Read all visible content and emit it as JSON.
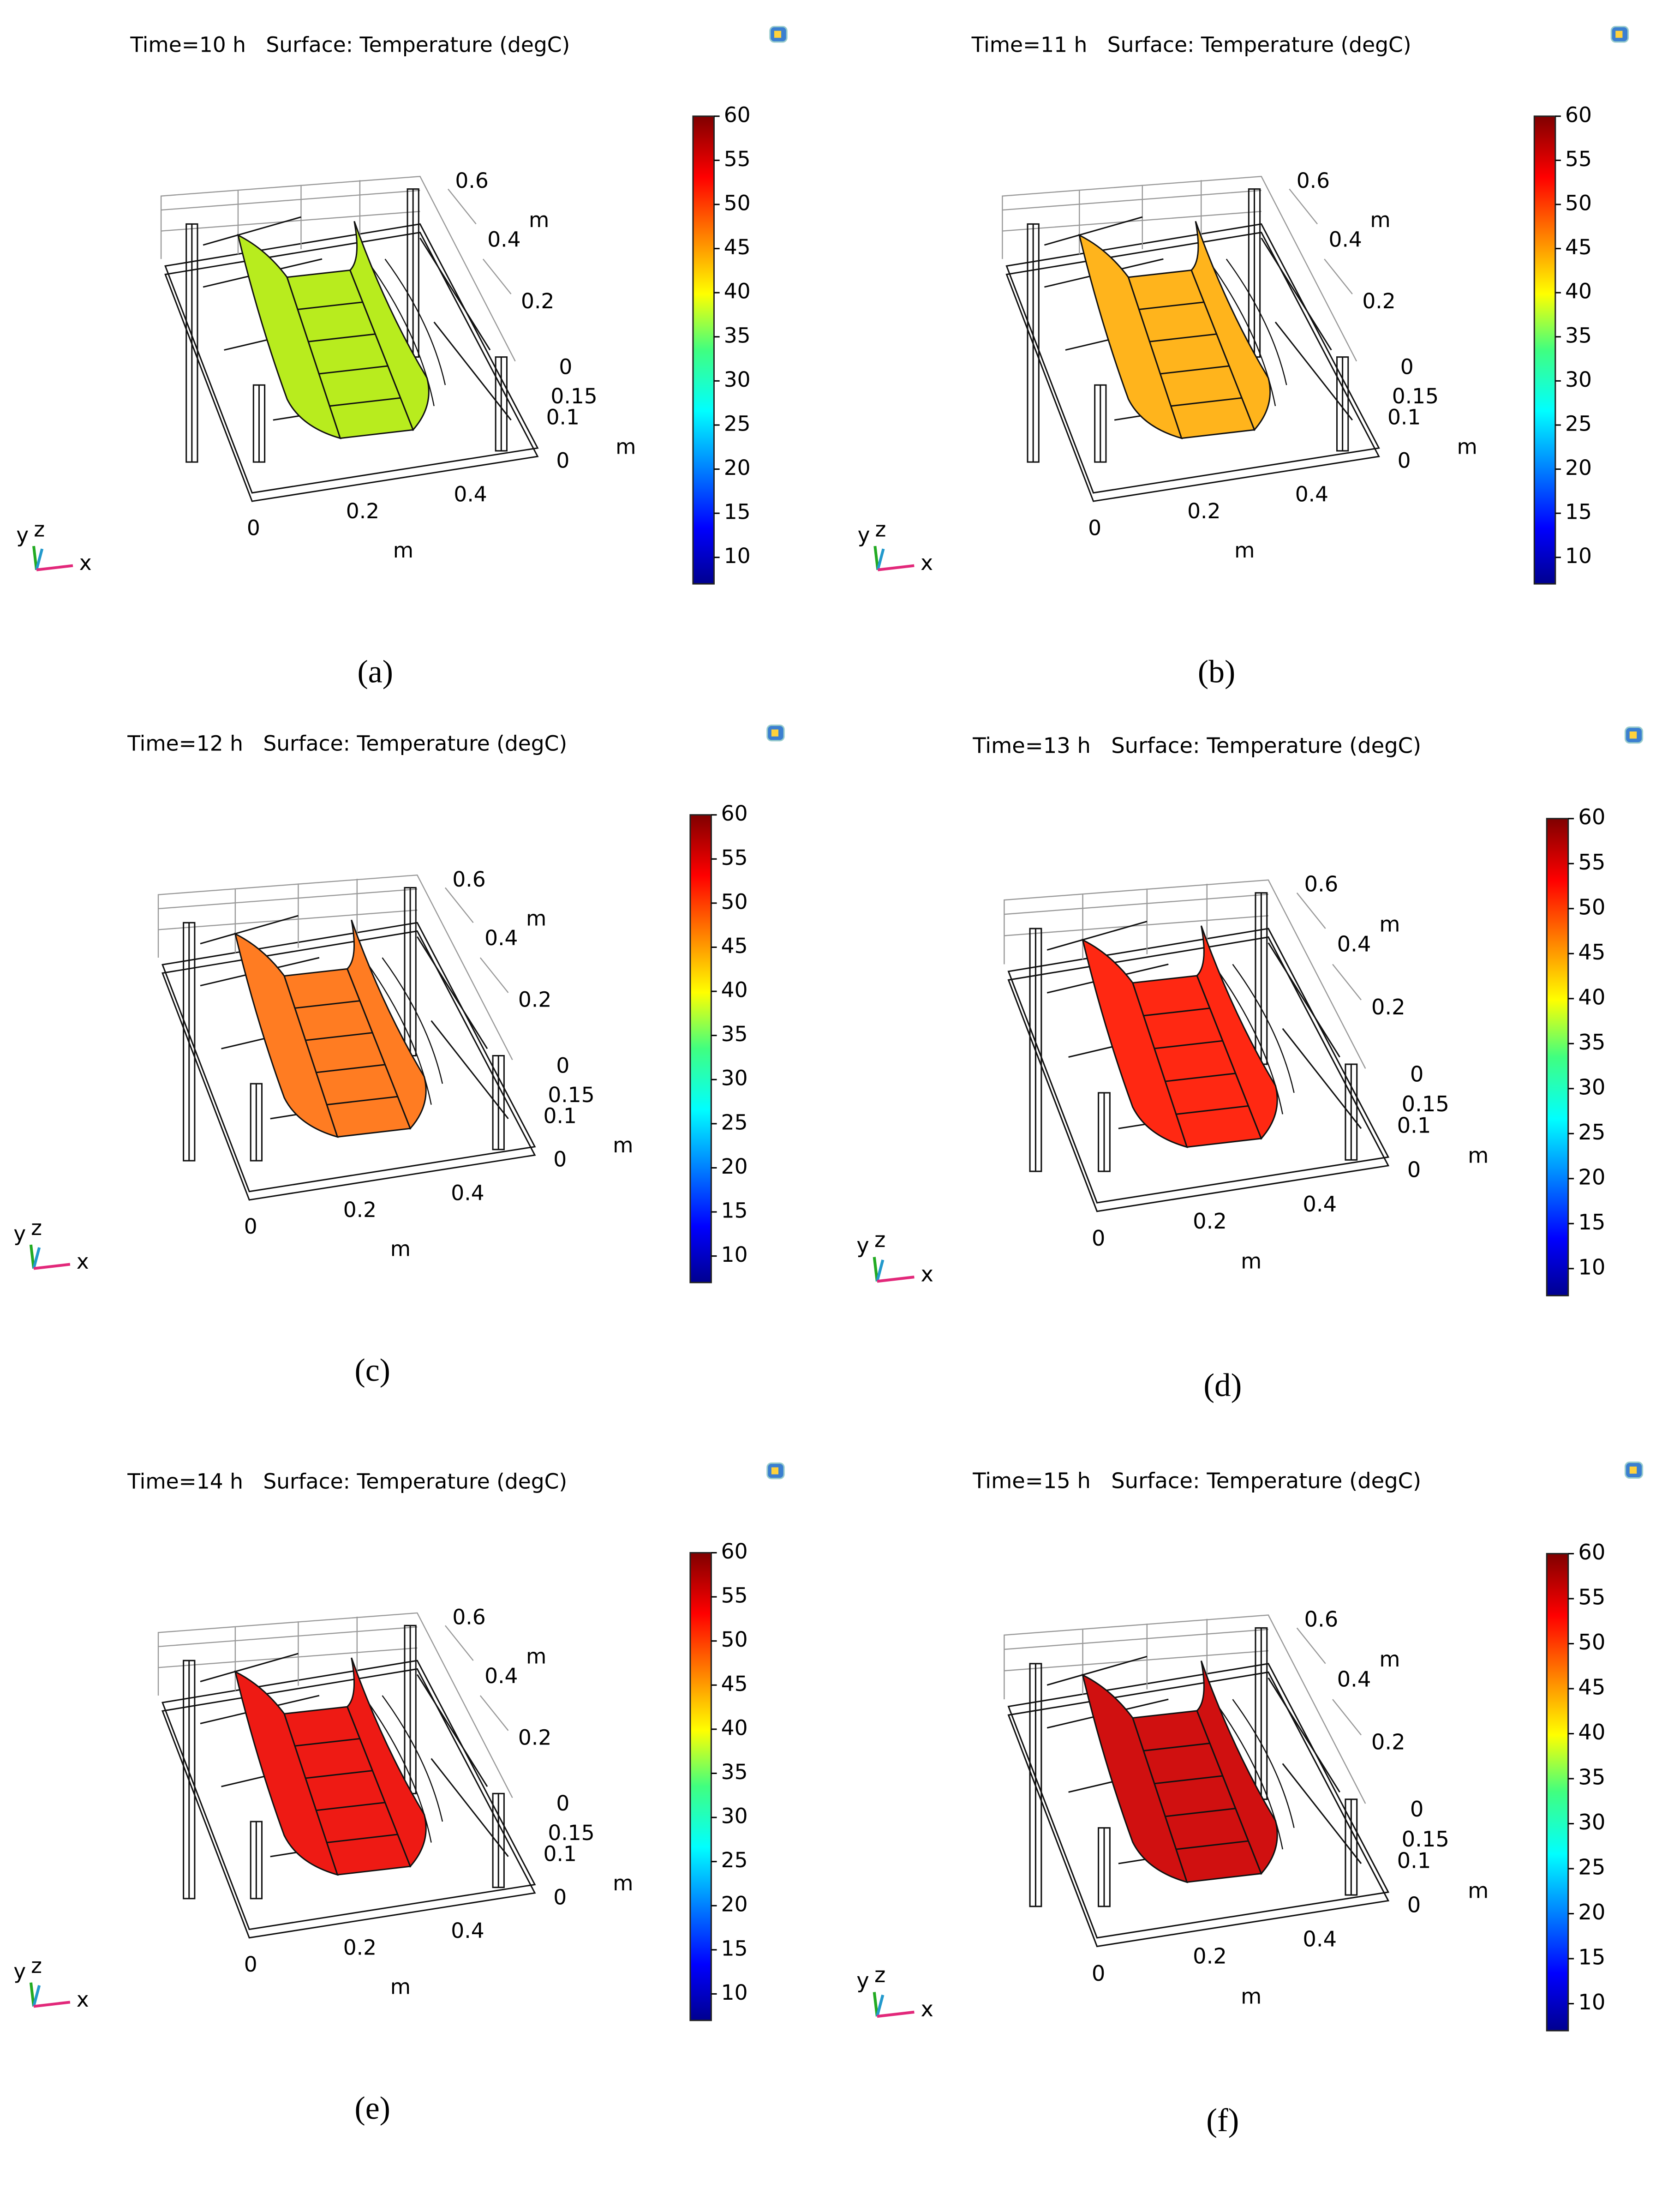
{
  "panels": [
    {
      "title": "Time=10 h   Surface: Temperature (degC)",
      "caption": "(a)",
      "surface_color": "#b8ec1e",
      "clim": [
        7,
        60
      ],
      "colorbar_ticks": [
        10,
        15,
        20,
        25,
        30,
        35,
        40,
        45,
        50,
        55,
        60
      ],
      "x_ticks": [
        0,
        0.2,
        0.4
      ],
      "x_label": "m",
      "y_ticks": [
        0,
        0.2,
        0.4,
        0.6
      ],
      "y_label": "m",
      "z_ticks": [
        0,
        0.1,
        0.15
      ],
      "z_label": "m",
      "triad": [
        "y",
        "z",
        "x"
      ]
    },
    {
      "title": "Time=11 h   Surface: Temperature (degC)",
      "caption": "(b)",
      "surface_color": "#ffb41c",
      "clim": [
        7,
        60
      ],
      "colorbar_ticks": [
        10,
        15,
        20,
        25,
        30,
        35,
        40,
        45,
        50,
        55,
        60
      ],
      "x_ticks": [
        0,
        0.2,
        0.4
      ],
      "x_label": "m",
      "y_ticks": [
        0,
        0.2,
        0.4,
        0.6
      ],
      "y_label": "m",
      "z_ticks": [
        0,
        0.1,
        0.15
      ],
      "z_label": "m",
      "triad": [
        "y",
        "z",
        "x"
      ]
    },
    {
      "title": "Time=12 h   Surface: Temperature (degC)",
      "caption": "(c)",
      "surface_color": "#ff7c22",
      "clim": [
        7,
        60
      ],
      "colorbar_ticks": [
        10,
        15,
        20,
        25,
        30,
        35,
        40,
        45,
        50,
        55,
        60
      ],
      "x_ticks": [
        0,
        0.2,
        0.4
      ],
      "x_label": "m",
      "y_ticks": [
        0,
        0.2,
        0.4,
        0.6
      ],
      "y_label": "m",
      "z_ticks": [
        0,
        0.1,
        0.15
      ],
      "z_label": "m",
      "triad": [
        "y",
        "z",
        "x"
      ]
    },
    {
      "title": "Time=13 h   Surface: Temperature (degC)",
      "caption": "(d)",
      "surface_color": "#ff2812",
      "clim": [
        7,
        60
      ],
      "colorbar_ticks": [
        10,
        15,
        20,
        25,
        30,
        35,
        40,
        45,
        50,
        55,
        60
      ],
      "x_ticks": [
        0,
        0.2,
        0.4
      ],
      "x_label": "m",
      "y_ticks": [
        0,
        0.2,
        0.4,
        0.6
      ],
      "y_label": "m",
      "z_ticks": [
        0,
        0.1,
        0.15
      ],
      "z_label": "m",
      "triad": [
        "y",
        "z",
        "x"
      ]
    },
    {
      "title": "Time=14 h   Surface: Temperature (degC)",
      "caption": "(e)",
      "surface_color": "#ee1a14",
      "clim": [
        7,
        60
      ],
      "colorbar_ticks": [
        10,
        15,
        20,
        25,
        30,
        35,
        40,
        45,
        50,
        55,
        60
      ],
      "x_ticks": [
        0,
        0.2,
        0.4
      ],
      "x_label": "m",
      "y_ticks": [
        0,
        0.2,
        0.4,
        0.6
      ],
      "y_label": "m",
      "z_ticks": [
        0,
        0.1,
        0.15
      ],
      "z_label": "m",
      "triad": [
        "y",
        "z",
        "x"
      ]
    },
    {
      "title": "Time=15 h   Surface: Temperature (degC)",
      "caption": "(f)",
      "surface_color": "#d01010",
      "clim": [
        7,
        60
      ],
      "colorbar_ticks": [
        10,
        15,
        20,
        25,
        30,
        35,
        40,
        45,
        50,
        55,
        60
      ],
      "x_ticks": [
        0,
        0.2,
        0.4
      ],
      "x_label": "m",
      "y_ticks": [
        0,
        0.2,
        0.4,
        0.6
      ],
      "y_label": "m",
      "z_ticks": [
        0,
        0.1,
        0.15
      ],
      "z_label": "m",
      "triad": [
        "y",
        "z",
        "x"
      ]
    }
  ]
}
